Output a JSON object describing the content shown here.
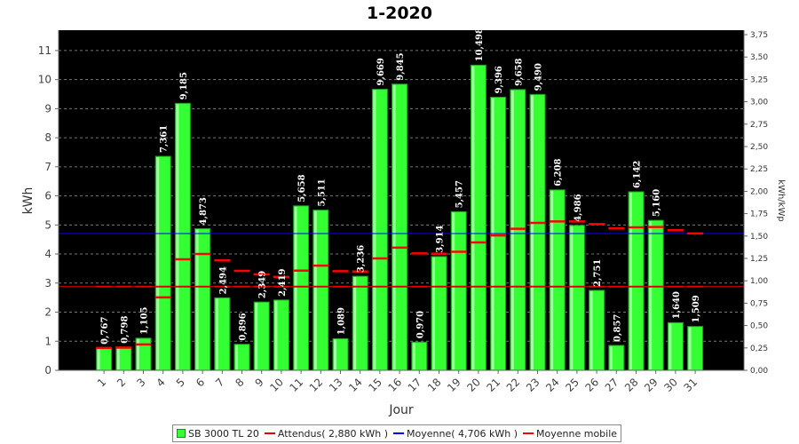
{
  "chart_data": {
    "type": "bar",
    "title": "1-2020",
    "xlabel": "Jour",
    "ylabel": "kWh",
    "ylabel_right": "kWh/kWp",
    "ylim": [
      0,
      11.7
    ],
    "ylim_right": [
      0,
      3.8
    ],
    "yticks": [
      "0",
      "1",
      "2",
      "3",
      "4",
      "5",
      "6",
      "7",
      "8",
      "9",
      "10",
      "11"
    ],
    "yticks_right": [
      "0,00",
      "0,25",
      "0,50",
      "0,75",
      "1,00",
      "1,25",
      "1,50",
      "1,75",
      "2,00",
      "2,25",
      "2,50",
      "2,75",
      "3,00",
      "3,25",
      "3,50",
      "3,75"
    ],
    "categories": [
      "1",
      "2",
      "3",
      "4",
      "5",
      "6",
      "7",
      "8",
      "9",
      "10",
      "11",
      "12",
      "13",
      "14",
      "15",
      "16",
      "17",
      "18",
      "19",
      "20",
      "21",
      "22",
      "23",
      "24",
      "25",
      "26",
      "27",
      "28",
      "29",
      "30",
      "31"
    ],
    "grid": true,
    "legend_position": "bottom",
    "series": [
      {
        "name": "SB 3000 TL 20",
        "kind": "bar",
        "color": "#33ff33",
        "values": [
          0.767,
          0.798,
          1.105,
          7.361,
          9.185,
          4.873,
          2.494,
          0.896,
          2.349,
          2.419,
          5.658,
          5.511,
          1.089,
          3.236,
          9.669,
          9.845,
          0.97,
          3.914,
          5.457,
          10.498,
          9.396,
          9.658,
          9.49,
          6.208,
          4.986,
          2.751,
          0.857,
          6.142,
          5.16,
          1.64,
          1.509
        ],
        "labels": [
          "0,767",
          "0,798",
          "1,105",
          "7,361",
          "9,185",
          "4,873",
          "2,494",
          "0,896",
          "2,349",
          "2,419",
          "5,658",
          "5,511",
          "1,089",
          "3,236",
          "9,669",
          "9,845",
          "0,970",
          "3,914",
          "5,457",
          "10,498",
          "9,396",
          "9,658",
          "9,490",
          "6,208",
          "4,986",
          "2,751",
          "0,857",
          "6,142",
          "5,160",
          "1,640",
          "1,509"
        ]
      },
      {
        "name": "Attendus( 2,880 kWh )",
        "kind": "line",
        "color": "#dd0000",
        "value": 2.88
      },
      {
        "name": "Moyenne( 4,706 kWh )",
        "kind": "line",
        "color": "#0000ff",
        "value": 4.706
      },
      {
        "name": "Moyenne mobile",
        "kind": "step",
        "color": "#ff0000",
        "values": [
          0.767,
          0.78,
          0.89,
          2.51,
          3.82,
          4.0,
          3.78,
          3.42,
          3.3,
          3.21,
          3.43,
          3.6,
          3.41,
          3.4,
          3.85,
          4.22,
          4.02,
          4.01,
          4.08,
          4.4,
          4.64,
          4.87,
          5.07,
          5.12,
          5.12,
          5.03,
          4.88,
          4.92,
          4.93,
          4.82,
          4.71
        ]
      }
    ]
  }
}
